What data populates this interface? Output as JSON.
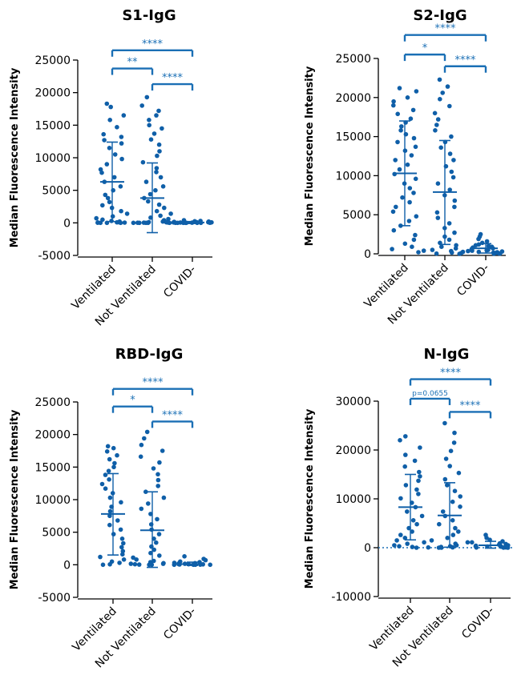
{
  "colors": {
    "points": "#0f5fa8",
    "brackets": "#1a6fb5",
    "axis": "#000000",
    "zero_line": "#1a6fb5"
  },
  "chart_data": [
    {
      "type": "scatter",
      "title": "S1-IgG",
      "ylabel": "Median Fluorescence Intensity",
      "categories": [
        "Ventilated",
        "Not Ventilated",
        "COVID-"
      ],
      "ylim": [
        -5000,
        25000
      ],
      "yticks": [
        25000,
        20000,
        15000,
        10000,
        5000,
        0,
        -5000
      ],
      "yticklabels": [
        "25000",
        "20000",
        "15000",
        "10000",
        "5000",
        "0",
        "-5000"
      ],
      "zero_line": false,
      "groups": [
        {
          "mean": 6300,
          "sd_high": 12400,
          "sd_low": 200,
          "points": [
            18300,
            17800,
            16500,
            15800,
            14700,
            13600,
            13200,
            12700,
            12200,
            11500,
            10500,
            9800,
            9000,
            8200,
            7700,
            7000,
            6300,
            5600,
            5000,
            4300,
            3800,
            3200,
            2700,
            2300,
            1800,
            1400,
            1000,
            700,
            500,
            300,
            200,
            150,
            100,
            80,
            60,
            40,
            20,
            10,
            5,
            0
          ]
        },
        {
          "mean": 3800,
          "sd_high": 9200,
          "sd_low": -1500,
          "points": [
            19300,
            18000,
            17200,
            16500,
            15800,
            15000,
            14500,
            13700,
            12800,
            12000,
            11000,
            10300,
            9300,
            8400,
            7800,
            7000,
            6300,
            5600,
            5000,
            4400,
            3800,
            3300,
            2800,
            2300,
            1800,
            1400,
            1100,
            800,
            600,
            400,
            300,
            200,
            120,
            80,
            50,
            30,
            15,
            5,
            0,
            0,
            0,
            0
          ]
        },
        {
          "mean": 50,
          "sd_high": 200,
          "sd_low": -100,
          "points": [
            400,
            300,
            250,
            200,
            150,
            120,
            100,
            80,
            60,
            50,
            40,
            30,
            20,
            10,
            5,
            0,
            0,
            0,
            0,
            0
          ]
        }
      ],
      "brackets": [
        {
          "from": 0,
          "to": 2,
          "label": "****",
          "y": 26500
        },
        {
          "from": 0,
          "to": 1,
          "label": "**",
          "y": 23700
        },
        {
          "from": 1,
          "to": 2,
          "label": "****",
          "y": 21300
        }
      ]
    },
    {
      "type": "scatter",
      "title": "S2-IgG",
      "ylabel": "Median Fluorescence Intensity",
      "categories": [
        "Ventilated",
        "Not Ventilated",
        "COVID-"
      ],
      "ylim": [
        0,
        25000
      ],
      "yticks": [
        25000,
        20000,
        15000,
        10000,
        5000,
        0
      ],
      "yticklabels": [
        "25000",
        "20000",
        "15000",
        "10000",
        "5000",
        "0"
      ],
      "zero_line": false,
      "groups": [
        {
          "mean": 10300,
          "sd_high": 17000,
          "sd_low": 3600,
          "points": [
            21200,
            20800,
            20000,
            19500,
            19000,
            18400,
            17900,
            17300,
            16800,
            16300,
            15800,
            15300,
            14800,
            14300,
            13700,
            13200,
            12600,
            12000,
            11400,
            10800,
            10200,
            9600,
            9000,
            8400,
            7800,
            7200,
            6600,
            6000,
            5400,
            4800,
            4200,
            3600,
            3000,
            2400,
            1800,
            1300,
            900,
            600,
            400,
            200
          ]
        },
        {
          "mean": 7900,
          "sd_high": 14500,
          "sd_low": 1200,
          "points": [
            22300,
            21400,
            20600,
            19800,
            18900,
            18000,
            17200,
            16500,
            15800,
            15000,
            14300,
            13600,
            12800,
            12000,
            11200,
            10500,
            9800,
            9000,
            8200,
            7500,
            6800,
            6000,
            5300,
            4600,
            3900,
            3300,
            2700,
            2200,
            1800,
            1400,
            1100,
            900,
            700,
            500,
            350,
            250,
            150,
            80,
            30,
            0
          ]
        },
        {
          "mean": 700,
          "sd_high": 1300,
          "sd_low": 100,
          "points": [
            2500,
            2200,
            1900,
            1600,
            1400,
            1200,
            1100,
            1000,
            900,
            800,
            700,
            600,
            500,
            450,
            400,
            350,
            300,
            250,
            200,
            150,
            100,
            60,
            30,
            10
          ]
        }
      ],
      "brackets": [
        {
          "from": 0,
          "to": 2,
          "label": "****",
          "y": 28000
        },
        {
          "from": 0,
          "to": 1,
          "label": "*",
          "y": 25500
        },
        {
          "from": 1,
          "to": 2,
          "label": "****",
          "y": 24000
        }
      ]
    },
    {
      "type": "scatter",
      "title": "RBD-IgG",
      "ylabel": "Median Fluorescence Intensity",
      "categories": [
        "Ventilated",
        "Not Ventilated",
        "COVID-"
      ],
      "ylim": [
        -5000,
        25000
      ],
      "yticks": [
        25000,
        20000,
        15000,
        10000,
        5000,
        0,
        -5000
      ],
      "yticklabels": [
        "25000",
        "20000",
        "15000",
        "10000",
        "5000",
        "0",
        "-5000"
      ],
      "zero_line": false,
      "groups": [
        {
          "mean": 7800,
          "sd_high": 14000,
          "sd_low": 1500,
          "points": [
            18200,
            17900,
            17400,
            16800,
            16200,
            15600,
            15000,
            14400,
            13800,
            13100,
            12400,
            11700,
            11000,
            10300,
            9600,
            8900,
            8200,
            7500,
            6800,
            6100,
            5400,
            4700,
            4000,
            3300,
            2700,
            2100,
            1600,
            1200,
            800,
            500,
            300,
            150,
            60,
            0
          ]
        },
        {
          "mean": 5300,
          "sd_high": 11200,
          "sd_low": -400,
          "points": [
            20400,
            19400,
            18400,
            17500,
            16600,
            15700,
            14800,
            13900,
            13000,
            12100,
            11200,
            10300,
            9400,
            8600,
            7800,
            7000,
            6200,
            5400,
            4700,
            4000,
            3400,
            2800,
            2300,
            1800,
            1400,
            1100,
            800,
            600,
            400,
            250,
            150,
            80,
            30,
            0,
            0
          ]
        },
        {
          "mean": 100,
          "sd_high": 400,
          "sd_low": -100,
          "points": [
            1300,
            900,
            700,
            500,
            400,
            300,
            250,
            200,
            150,
            100,
            80,
            60,
            40,
            20,
            10,
            0,
            0,
            0
          ]
        }
      ],
      "brackets": [
        {
          "from": 0,
          "to": 2,
          "label": "****",
          "y": 27000
        },
        {
          "from": 0,
          "to": 1,
          "label": "*",
          "y": 24300
        },
        {
          "from": 1,
          "to": 2,
          "label": "****",
          "y": 22000
        }
      ]
    },
    {
      "type": "scatter",
      "title": "N-IgG",
      "ylabel": "Median Fluorescence Intensity",
      "categories": [
        "Ventilated",
        "Not Ventilated",
        "COVID-"
      ],
      "ylim": [
        -10000,
        30000
      ],
      "yticks": [
        30000,
        20000,
        10000,
        0,
        -10000
      ],
      "yticklabels": [
        "30000",
        "20000",
        "10000",
        "0",
        "-10000"
      ],
      "zero_line": true,
      "groups": [
        {
          "mean": 8300,
          "sd_high": 15000,
          "sd_low": 1600,
          "points": [
            22800,
            22000,
            20500,
            19000,
            17800,
            16600,
            15500,
            14600,
            13700,
            12800,
            11900,
            11000,
            10100,
            9200,
            8300,
            7400,
            6500,
            5600,
            4800,
            4000,
            3300,
            2600,
            2000,
            1500,
            1100,
            800,
            500,
            300,
            150,
            50,
            0
          ]
        },
        {
          "mean": 6600,
          "sd_high": 13300,
          "sd_low": 100,
          "points": [
            25500,
            23500,
            21500,
            19800,
            18200,
            16700,
            15300,
            14000,
            12800,
            11600,
            10500,
            9400,
            8400,
            7400,
            6500,
            5600,
            4800,
            4000,
            3300,
            2600,
            2000,
            1500,
            1100,
            800,
            500,
            300,
            150,
            60,
            0,
            0
          ]
        },
        {
          "mean": 500,
          "sd_high": 1300,
          "sd_low": -100,
          "points": [
            2600,
            2000,
            1600,
            1300,
            1100,
            900,
            750,
            600,
            500,
            400,
            300,
            250,
            200,
            150,
            100,
            60,
            30,
            10,
            0
          ]
        }
      ],
      "brackets": [
        {
          "from": 0,
          "to": 2,
          "label": "****",
          "y": 34500
        },
        {
          "from": 0,
          "to": 1,
          "label": "p=0.0655",
          "y": 30500,
          "small": true
        },
        {
          "from": 1,
          "to": 2,
          "label": "****",
          "y": 27800
        }
      ]
    }
  ]
}
